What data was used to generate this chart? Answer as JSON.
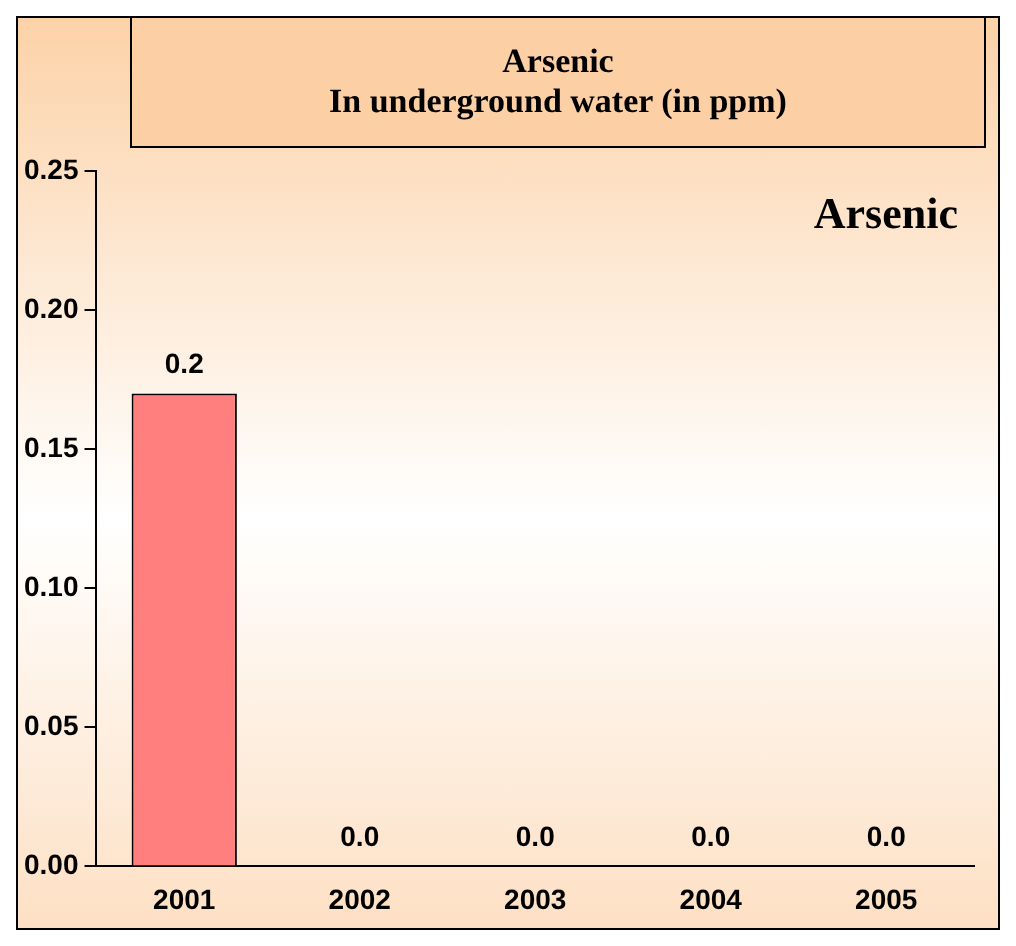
{
  "chart_data": {
    "type": "bar",
    "title": "Arsenic\nIn underground water (in ppm)",
    "annotations": [
      "Arsenic"
    ],
    "categories": [
      "2001",
      "2002",
      "2003",
      "2004",
      "2005"
    ],
    "values": [
      0.17,
      0,
      0,
      0,
      0
    ],
    "value_labels": [
      "0.2",
      "0.0",
      "0.0",
      "0.0",
      "0.0"
    ],
    "color": "#ff7f7f",
    "ylim": [
      0,
      0.25
    ],
    "yticks": [
      {
        "value": 0,
        "label": "0.00"
      },
      {
        "value": 0.05,
        "label": "0.05"
      },
      {
        "value": 0.1,
        "label": "0.10"
      },
      {
        "value": 0.15,
        "label": "0.15"
      },
      {
        "value": 0.2,
        "label": "0.20"
      },
      {
        "value": 0.25,
        "label": "0.25"
      }
    ],
    "grid": false,
    "legend": false
  }
}
